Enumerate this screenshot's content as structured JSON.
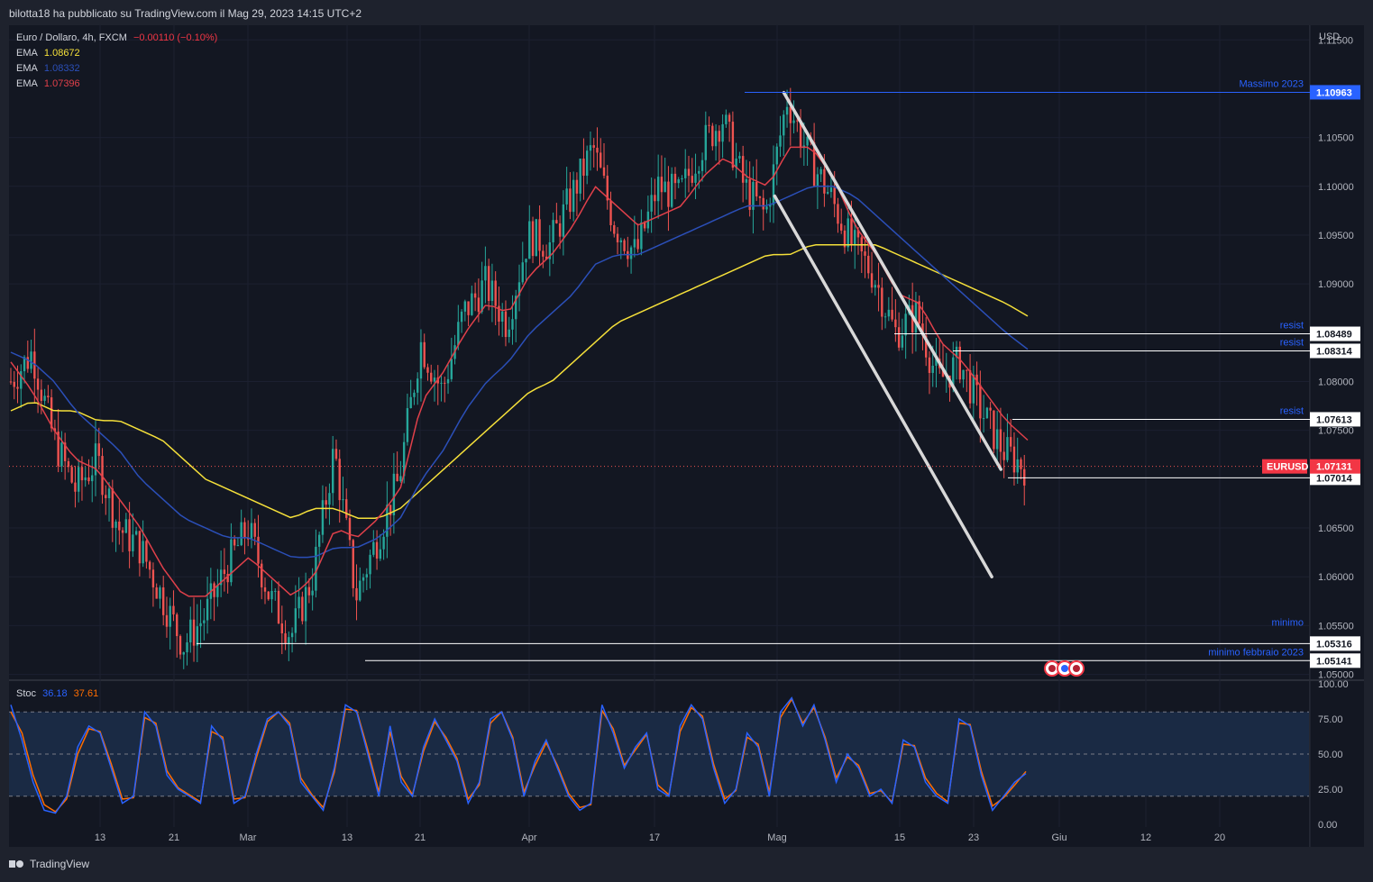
{
  "header": {
    "published_text": "bilotta18 ha pubblicato su TradingView.com il Mag 29, 2023 14:15 UTC+2"
  },
  "footer": {
    "brand": "TradingView"
  },
  "legend": {
    "symbol": "Euro / Dollaro, 4h, FXCM",
    "change": "−0.00110 (−0.10%)",
    "emas": [
      {
        "label": "EMA",
        "value": "1.08672",
        "color": "#f5e03a"
      },
      {
        "label": "EMA",
        "value": "1.08332",
        "color": "#2b4fb8"
      },
      {
        "label": "EMA",
        "value": "1.07396",
        "color": "#e0404a"
      }
    ],
    "stoch": {
      "label": "Stoc",
      "k": "36.18",
      "d": "37.61",
      "k_color": "#2962ff",
      "d_color": "#ff6d00"
    }
  },
  "chart_data": {
    "type": "candlestick",
    "currency": "USD",
    "y_ticks": [
      "1.11500",
      "1.10500",
      "1.10000",
      "1.09500",
      "1.09000",
      "1.08000",
      "1.07500",
      "1.06500",
      "1.06000",
      "1.05500",
      "1.05000"
    ],
    "ylim": [
      1.0495,
      1.1165
    ],
    "x_ticks": [
      "13",
      "21",
      "Mar",
      "13",
      "21",
      "Apr",
      "17",
      "Mag",
      "15",
      "23",
      "Giu",
      "12",
      "20"
    ],
    "current_price": {
      "label": "EURUSD",
      "value": 1.07131,
      "text": "1.07131"
    },
    "levels": [
      {
        "value": 1.10963,
        "text": "1.10963",
        "name": "Massimo 2023",
        "color": "#2962ff"
      },
      {
        "value": 1.08489,
        "text": "1.08489",
        "name": "resist",
        "color": "#ffffff"
      },
      {
        "value": 1.08314,
        "text": "1.08314",
        "name": "resist",
        "color": "#ffffff"
      },
      {
        "value": 1.07613,
        "text": "1.07613",
        "name": "resist",
        "color": "#ffffff"
      },
      {
        "value": 1.07014,
        "text": "1.07014",
        "name": "",
        "color": "#ffffff"
      },
      {
        "value": 1.05316,
        "text": "1.05316",
        "name": "minimo",
        "color": "#ffffff"
      },
      {
        "value": 1.05141,
        "text": "1.05141",
        "name": "minimo febbraio 2023",
        "color": "#ffffff"
      }
    ],
    "price_path": [
      1.08,
      1.083,
      1.074,
      1.069,
      1.072,
      1.065,
      1.063,
      1.058,
      1.053,
      1.056,
      1.061,
      1.065,
      1.058,
      1.054,
      1.06,
      1.073,
      1.058,
      1.064,
      1.07,
      1.084,
      1.079,
      1.087,
      1.09,
      1.086,
      1.095,
      1.094,
      1.099,
      1.104,
      1.096,
      1.093,
      1.1,
      1.099,
      1.104,
      1.107,
      1.1,
      1.097,
      1.109,
      1.103,
      1.099,
      1.094,
      1.091,
      1.085,
      1.087,
      1.08,
      1.082,
      1.077,
      1.073,
      1.0713
    ],
    "ema_fast_path": [
      1.082,
      1.079,
      1.075,
      1.072,
      1.071,
      1.068,
      1.065,
      1.061,
      1.058,
      1.058,
      1.06,
      1.062,
      1.06,
      1.058,
      1.06,
      1.065,
      1.064,
      1.066,
      1.069,
      1.078,
      1.081,
      1.085,
      1.088,
      1.087,
      1.091,
      1.093,
      1.096,
      1.1,
      1.098,
      1.096,
      1.097,
      1.098,
      1.101,
      1.103,
      1.101,
      1.1,
      1.104,
      1.104,
      1.101,
      1.096,
      1.093,
      1.089,
      1.088,
      1.084,
      1.082,
      1.079,
      1.076,
      1.074
    ],
    "ema_mid_path": [
      1.083,
      1.082,
      1.08,
      1.077,
      1.075,
      1.073,
      1.07,
      1.068,
      1.066,
      1.065,
      1.064,
      1.064,
      1.063,
      1.062,
      1.062,
      1.063,
      1.063,
      1.064,
      1.066,
      1.07,
      1.073,
      1.077,
      1.08,
      1.082,
      1.085,
      1.087,
      1.089,
      1.092,
      1.093,
      1.093,
      1.094,
      1.095,
      1.096,
      1.097,
      1.098,
      1.098,
      1.099,
      1.1,
      1.1,
      1.099,
      1.097,
      1.095,
      1.093,
      1.091,
      1.089,
      1.087,
      1.085,
      1.0833
    ],
    "ema_slow_path": [
      1.077,
      1.078,
      1.077,
      1.077,
      1.076,
      1.076,
      1.075,
      1.074,
      1.072,
      1.07,
      1.069,
      1.068,
      1.067,
      1.066,
      1.067,
      1.067,
      1.066,
      1.066,
      1.067,
      1.069,
      1.071,
      1.073,
      1.075,
      1.077,
      1.079,
      1.08,
      1.082,
      1.084,
      1.086,
      1.087,
      1.088,
      1.089,
      1.09,
      1.091,
      1.092,
      1.093,
      1.093,
      1.094,
      1.094,
      1.094,
      1.094,
      1.093,
      1.092,
      1.091,
      1.09,
      1.089,
      1.088,
      1.0867
    ],
    "channel": {
      "upper": [
        [
          1.1096,
          0.596
        ],
        [
          1.071,
          0.763
        ]
      ],
      "lower": [
        [
          1.099,
          0.589
        ],
        [
          1.06,
          0.756
        ]
      ]
    },
    "stochastic": {
      "y_ticks": [
        "100.00",
        "75.00",
        "50.00",
        "25.00",
        "0.00"
      ],
      "bands": [
        80,
        50,
        20
      ],
      "k": [
        85,
        60,
        30,
        10,
        8,
        20,
        55,
        70,
        65,
        40,
        15,
        20,
        80,
        70,
        35,
        25,
        20,
        15,
        70,
        60,
        15,
        20,
        50,
        75,
        80,
        70,
        30,
        20,
        10,
        40,
        85,
        80,
        50,
        20,
        70,
        30,
        20,
        55,
        75,
        60,
        45,
        15,
        30,
        75,
        80,
        60,
        20,
        45,
        60,
        40,
        20,
        10,
        15,
        85,
        65,
        40,
        55,
        65,
        25,
        20,
        70,
        85,
        75,
        40,
        15,
        25,
        65,
        55,
        20,
        80,
        90,
        70,
        85,
        60,
        30,
        50,
        40,
        20,
        25,
        15,
        60,
        55,
        30,
        20,
        15,
        75,
        70,
        35,
        10,
        20,
        30,
        36.18
      ],
      "d": [
        80,
        65,
        35,
        14,
        9,
        18,
        50,
        68,
        66,
        43,
        18,
        19,
        76,
        72,
        38,
        26,
        21,
        16,
        66,
        62,
        18,
        19,
        47,
        73,
        80,
        72,
        33,
        21,
        12,
        37,
        82,
        81,
        53,
        23,
        66,
        34,
        21,
        52,
        73,
        62,
        47,
        18,
        28,
        72,
        80,
        62,
        23,
        42,
        58,
        42,
        22,
        12,
        14,
        81,
        68,
        42,
        53,
        64,
        28,
        21,
        66,
        83,
        77,
        43,
        18,
        24,
        62,
        57,
        23,
        76,
        89,
        72,
        83,
        62,
        33,
        48,
        42,
        22,
        24,
        16,
        57,
        56,
        33,
        22,
        16,
        72,
        71,
        38,
        13,
        19,
        28,
        37.61
      ]
    }
  }
}
